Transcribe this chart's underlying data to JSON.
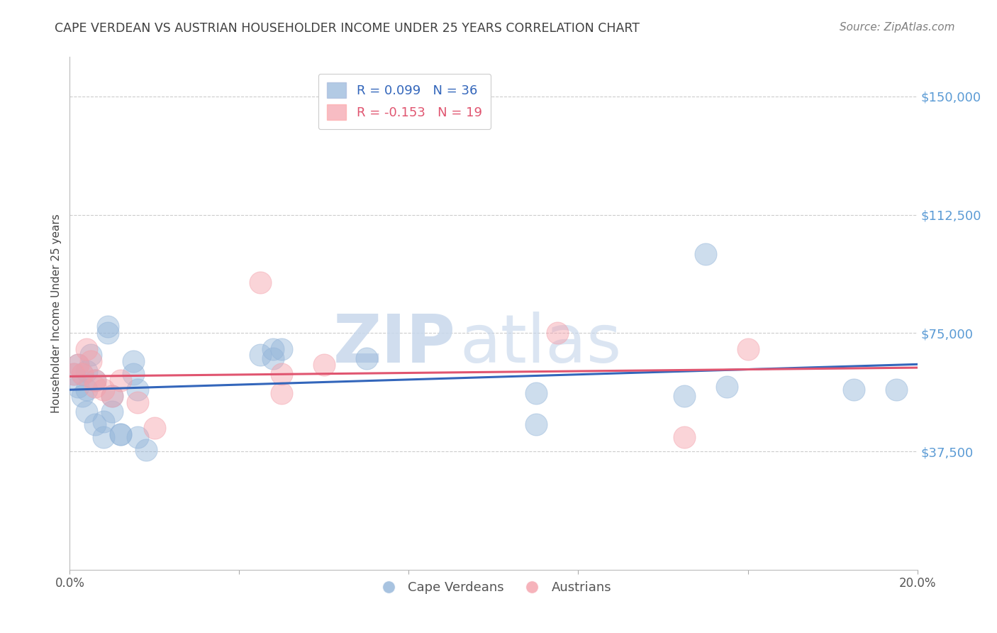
{
  "title": "CAPE VERDEAN VS AUSTRIAN HOUSEHOLDER INCOME UNDER 25 YEARS CORRELATION CHART",
  "source": "Source: ZipAtlas.com",
  "ylabel": "Householder Income Under 25 years",
  "xlim": [
    0,
    0.2
  ],
  "ylim": [
    0,
    162500
  ],
  "yticks": [
    37500,
    75000,
    112500,
    150000
  ],
  "ytick_labels": [
    "$37,500",
    "$75,000",
    "$112,500",
    "$150,000"
  ],
  "xticks": [
    0.0,
    0.04,
    0.08,
    0.12,
    0.16,
    0.2
  ],
  "xtick_labels": [
    "0.0%",
    "",
    "",
    "",
    "",
    "20.0%"
  ],
  "legend_blue_label": "R = 0.099   N = 36",
  "legend_pink_label": "R = -0.153   N = 19",
  "bottom_legend": [
    "Cape Verdeans",
    "Austrians"
  ],
  "blue_color": "#92B4D9",
  "pink_color": "#F4A0AA",
  "blue_line_color": "#3366BB",
  "pink_line_color": "#E05570",
  "blue_scatter_x": [
    0.001,
    0.002,
    0.002,
    0.003,
    0.003,
    0.004,
    0.004,
    0.004,
    0.005,
    0.006,
    0.006,
    0.008,
    0.008,
    0.009,
    0.009,
    0.01,
    0.01,
    0.012,
    0.012,
    0.015,
    0.015,
    0.016,
    0.016,
    0.018,
    0.045,
    0.048,
    0.048,
    0.05,
    0.07,
    0.11,
    0.11,
    0.145,
    0.15,
    0.155,
    0.185,
    0.195
  ],
  "blue_scatter_y": [
    62000,
    65000,
    58000,
    62000,
    55000,
    63000,
    57000,
    50000,
    68000,
    60000,
    46000,
    47000,
    42000,
    75000,
    77000,
    55000,
    50000,
    43000,
    43000,
    62000,
    66000,
    57000,
    42000,
    38000,
    68000,
    67000,
    70000,
    70000,
    67000,
    56000,
    46000,
    55000,
    100000,
    58000,
    57000,
    57000
  ],
  "pink_scatter_x": [
    0.001,
    0.002,
    0.003,
    0.004,
    0.005,
    0.006,
    0.006,
    0.008,
    0.01,
    0.012,
    0.016,
    0.02,
    0.045,
    0.05,
    0.05,
    0.06,
    0.115,
    0.145,
    0.16
  ],
  "pink_scatter_y": [
    62000,
    65000,
    62000,
    70000,
    66000,
    60000,
    58000,
    57000,
    55000,
    60000,
    53000,
    45000,
    91000,
    62000,
    56000,
    65000,
    75000,
    42000,
    70000
  ],
  "watermark_zip": "ZIP",
  "watermark_atlas": "atlas",
  "background_color": "#FFFFFF",
  "grid_color": "#CCCCCC",
  "ytick_color": "#5B9BD5",
  "title_color": "#404040",
  "source_color": "#808080"
}
